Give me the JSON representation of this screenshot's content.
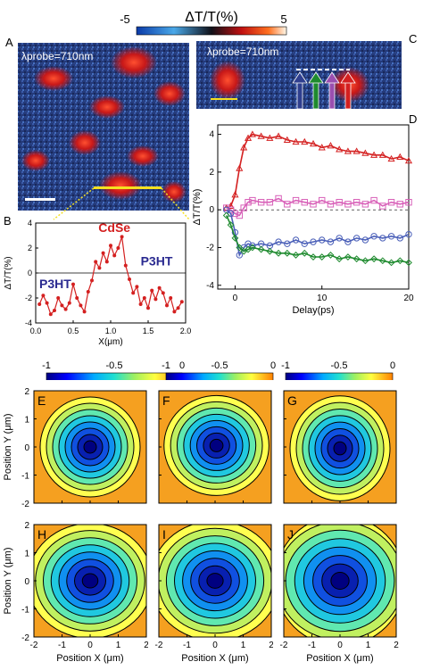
{
  "colorbar": {
    "title": "ΔT/T(%)",
    "min_label": "-5",
    "max_label": "5"
  },
  "panel_labels": {
    "A": "A",
    "B": "B",
    "C": "C",
    "D": "D",
    "E": "E",
    "F": "F",
    "G": "G",
    "H": "H",
    "I": "I",
    "J": "J"
  },
  "panelA": {
    "probe_text": "λprobe=710nm"
  },
  "panelC": {
    "probe_text": "λprobe=710nm",
    "arrow_colors": [
      "#2f3f8f",
      "#1e8a2e",
      "#9a4fb0",
      "#d42020"
    ]
  },
  "chart_data": [
    {
      "id": "B",
      "type": "line",
      "xlabel": "X(μm)",
      "ylabel": "ΔT/T(%)",
      "xlim": [
        0,
        2
      ],
      "ylim": [
        -4,
        4
      ],
      "xticks": [
        "0.0",
        "0.5",
        "1.0",
        "1.5",
        "2.0"
      ],
      "yticks": [
        "-4",
        "-2",
        "0",
        "2",
        "4"
      ],
      "annotations": [
        "CdSe",
        "P3HT",
        "P3HT"
      ],
      "series": [
        {
          "color": "#d42020",
          "x": [
            0.05,
            0.1,
            0.15,
            0.2,
            0.25,
            0.3,
            0.35,
            0.4,
            0.45,
            0.5,
            0.55,
            0.6,
            0.65,
            0.7,
            0.75,
            0.8,
            0.85,
            0.9,
            0.95,
            1.0,
            1.05,
            1.1,
            1.15,
            1.2,
            1.25,
            1.3,
            1.35,
            1.4,
            1.45,
            1.5,
            1.55,
            1.6,
            1.65,
            1.7,
            1.75,
            1.8,
            1.85,
            1.9,
            1.95
          ],
          "y": [
            -2.5,
            -1.8,
            -2.4,
            -3.3,
            -3.0,
            -2.0,
            -2.6,
            -2.9,
            -2.4,
            -0.9,
            -2.0,
            -2.6,
            -3.1,
            -1.5,
            -0.6,
            0.9,
            0.4,
            1.6,
            0.9,
            2.2,
            1.4,
            2.0,
            2.9,
            0.6,
            -0.5,
            -1.6,
            -1.1,
            -2.5,
            -2.0,
            -2.8,
            -1.4,
            -2.1,
            -1.2,
            -1.6,
            -2.6,
            -2.0,
            -3.1,
            -2.8,
            -2.3
          ]
        }
      ]
    },
    {
      "id": "D",
      "type": "scatter",
      "xlabel": "Delay(ps)",
      "ylabel": "ΔT/T(%)",
      "xlim": [
        -2,
        20
      ],
      "ylim": [
        -4.2,
        4.5
      ],
      "xticks": [
        "0",
        "10",
        "20"
      ],
      "yticks": [
        "-4",
        "-2",
        "0",
        "2",
        "4"
      ],
      "series": [
        {
          "color": "#d42020",
          "marker": "triangle",
          "x": [
            -1,
            -0.5,
            0,
            0.5,
            1,
            1.5,
            2,
            3,
            4,
            5,
            6,
            7,
            8,
            9,
            10,
            11,
            12,
            13,
            14,
            15,
            16,
            17,
            18,
            19,
            20
          ],
          "y": [
            0.1,
            0.2,
            0.8,
            2.2,
            3.3,
            3.8,
            4.0,
            3.9,
            3.8,
            3.9,
            3.7,
            3.6,
            3.6,
            3.5,
            3.3,
            3.4,
            3.2,
            3.1,
            3.1,
            3.0,
            2.9,
            2.9,
            2.7,
            2.8,
            2.6
          ]
        },
        {
          "color": "#d860b8",
          "marker": "square",
          "x": [
            -1,
            -0.5,
            0,
            0.5,
            1,
            1.5,
            2,
            3,
            4,
            5,
            6,
            7,
            8,
            9,
            10,
            11,
            12,
            13,
            14,
            15,
            16,
            17,
            18,
            19,
            20
          ],
          "y": [
            0.1,
            0.0,
            -0.2,
            -0.3,
            0.1,
            0.4,
            0.5,
            0.4,
            0.4,
            0.6,
            0.3,
            0.5,
            0.4,
            0.3,
            0.5,
            0.3,
            0.4,
            0.3,
            0.4,
            0.3,
            0.5,
            0.2,
            0.4,
            0.3,
            0.4
          ]
        },
        {
          "color": "#4a5fb8",
          "marker": "circle",
          "x": [
            -1,
            -0.5,
            0,
            0.5,
            1,
            1.5,
            2,
            3,
            4,
            5,
            6,
            7,
            8,
            9,
            10,
            11,
            12,
            13,
            14,
            15,
            16,
            17,
            18,
            19,
            20
          ],
          "y": [
            0.0,
            -0.2,
            -1.2,
            -2.4,
            -2.0,
            -1.8,
            -1.9,
            -1.8,
            -1.9,
            -1.7,
            -1.8,
            -1.6,
            -1.8,
            -1.7,
            -1.6,
            -1.7,
            -1.5,
            -1.7,
            -1.5,
            -1.6,
            -1.4,
            -1.5,
            -1.4,
            -1.5,
            -1.3
          ]
        },
        {
          "color": "#1e8a2e",
          "marker": "diamond",
          "x": [
            -1,
            -0.5,
            0,
            0.5,
            1,
            1.5,
            2,
            3,
            4,
            5,
            6,
            7,
            8,
            9,
            10,
            11,
            12,
            13,
            14,
            15,
            16,
            17,
            18,
            19,
            20
          ],
          "y": [
            -0.3,
            -0.8,
            -1.5,
            -2.0,
            -2.2,
            -2.1,
            -2.0,
            -2.1,
            -2.2,
            -2.3,
            -2.3,
            -2.4,
            -2.3,
            -2.5,
            -2.5,
            -2.4,
            -2.6,
            -2.5,
            -2.6,
            -2.7,
            -2.6,
            -2.7,
            -2.8,
            -2.7,
            -2.8
          ]
        }
      ]
    },
    {
      "id": "contour-maps",
      "type": "heatmap",
      "panels": [
        "E",
        "F",
        "G",
        "H",
        "I",
        "J"
      ],
      "colorbar_ticks": [
        "-1",
        "-0.5",
        "0"
      ],
      "xlabel": "Position X (μm)",
      "ylabel": "Position Y (μm)",
      "xticks": [
        "-2",
        "-1",
        "0",
        "1",
        "2"
      ],
      "yticks": [
        "-2",
        "-1",
        "0",
        "1",
        "2"
      ],
      "xlim": [
        -2,
        2
      ],
      "ylim": [
        -2,
        2
      ],
      "zlim": [
        -1,
        0
      ]
    }
  ]
}
